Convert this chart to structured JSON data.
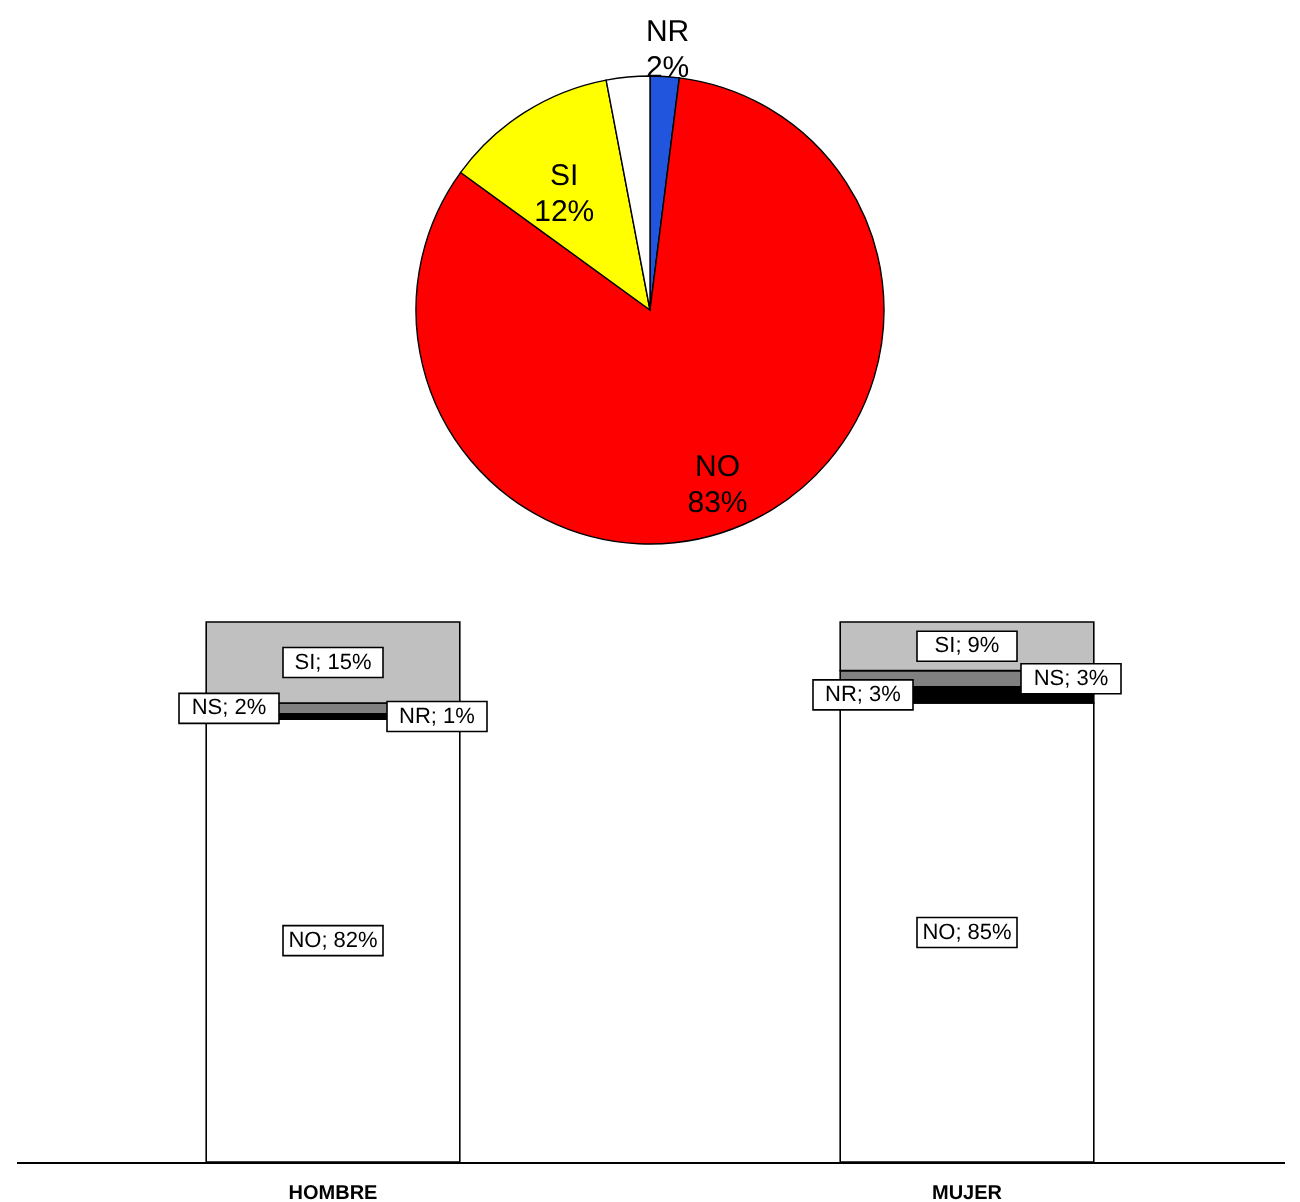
{
  "chart_data": [
    {
      "type": "pie",
      "categories": [
        "NR",
        "NO",
        "SI",
        null
      ],
      "values": [
        2,
        83,
        12,
        3
      ],
      "colors": [
        "#2255dd",
        "#ff0000",
        "#ffff00",
        "#ffffff"
      ],
      "value_labels": [
        "2%",
        "83%",
        "12%",
        null
      ]
    },
    {
      "type": "bar",
      "stacked": true,
      "categories": [
        "HOMBRE",
        "MUJER"
      ],
      "series": [
        {
          "color": "#ffffff",
          "values": [
            82,
            85
          ],
          "value_labels": [
            "NO; 82%",
            "NO; 85%"
          ]
        },
        {
          "color": "#000000",
          "values": [
            1,
            3
          ],
          "value_labels": [
            "NR; 1%",
            "NR; 3%"
          ]
        },
        {
          "color": "#808080",
          "values": [
            2,
            3
          ],
          "value_labels": [
            "NS; 2%",
            "NS; 3%"
          ]
        },
        {
          "color": "#c0c0c0",
          "values": [
            15,
            9
          ],
          "value_labels": [
            "SI; 15%",
            "SI; 9%"
          ]
        }
      ]
    }
  ]
}
